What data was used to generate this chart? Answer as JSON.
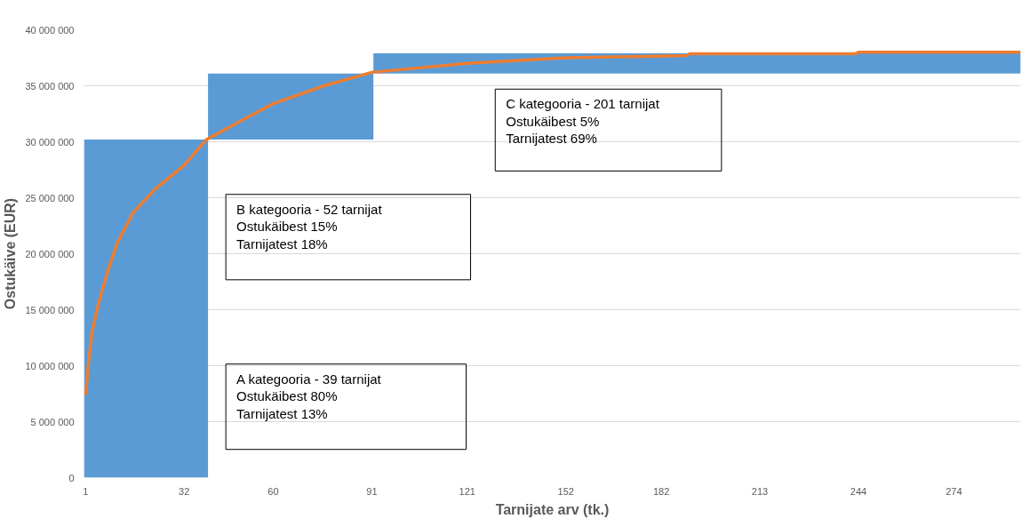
{
  "chart_data": {
    "type": "line",
    "xlabel": "Tarnijate arv (tk.)",
    "ylabel": "Ostukäive (EUR)",
    "series": [
      {
        "type": "histogram",
        "color": "#5b9bd5",
        "bins": [
          0.5,
          39.5,
          91.5,
          295
        ],
        "values": [
          30200000,
          5900000,
          1800000
        ],
        "base": [
          0,
          30200000,
          36100000
        ]
      },
      {
        "color": "#ed7d31",
        "x": [
          1,
          2,
          3,
          5,
          8,
          11,
          16,
          23,
          32,
          39,
          52,
          60,
          76,
          91,
          121,
          152,
          190,
          191,
          243,
          244,
          295
        ],
        "values": [
          7400000,
          10500000,
          13000000,
          15500000,
          18500000,
          21000000,
          23700000,
          25800000,
          27900000,
          30200000,
          32200000,
          33400000,
          35000000,
          36200000,
          37000000,
          37500000,
          37700000,
          37850000,
          37850000,
          38000000,
          38000000
        ]
      }
    ],
    "xlim": [
      0.5,
      295
    ],
    "xticks": [
      1,
      32,
      60,
      91,
      121,
      152,
      182,
      213,
      244,
      274
    ],
    "ylim": [
      0,
      40000000
    ],
    "yticks": [
      {
        "value": 0,
        "label": "0"
      },
      {
        "value": 5000000,
        "label": "5 000 000"
      },
      {
        "value": 10000000,
        "label": "10 000 000"
      },
      {
        "value": 15000000,
        "label": "15 000 000"
      },
      {
        "value": 20000000,
        "label": "20 000 000"
      },
      {
        "value": 25000000,
        "label": "25 000 000"
      },
      {
        "value": 30000000,
        "label": "30 000 000"
      },
      {
        "value": 35000000,
        "label": "35 000 000"
      },
      {
        "value": 40000000,
        "label": "40 000 000"
      }
    ],
    "grid": "y",
    "annotations": [
      "A kategooria - 39 tarnijat\nOstukäibest 80%\nTarnijatest 13%",
      "B kategooria - 52 tarnijat\nOstukäibest 15%\nTarnijatest 18%",
      "C kategooria - 201 tarnijat\nOstukäibest 5%\nTarnijatest 69%"
    ]
  }
}
